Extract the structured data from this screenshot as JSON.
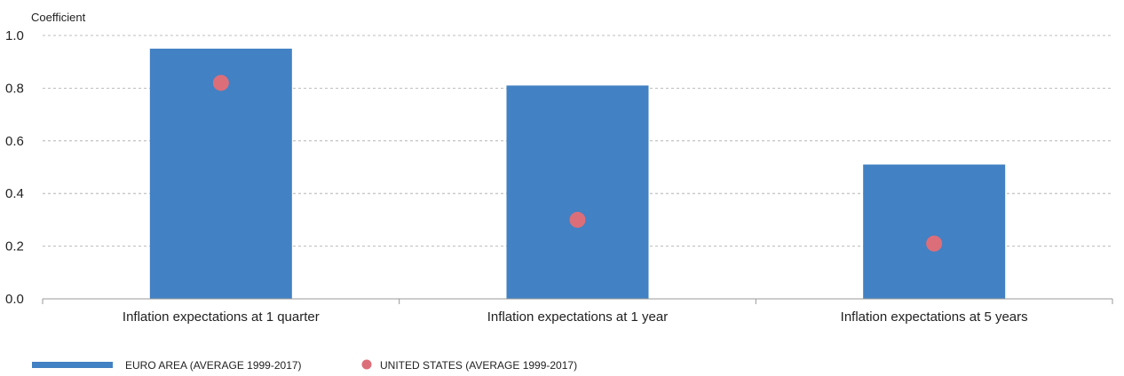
{
  "chart_data": {
    "type": "bar",
    "ylabel": "Coefficient",
    "ylim": [
      0,
      1.0
    ],
    "yticks": [
      "0.0",
      "0.2",
      "0.4",
      "0.6",
      "0.8",
      "1.0"
    ],
    "grid": true,
    "categories": [
      "Inflation expectations at 1 quarter",
      "Inflation expectations at 1 year",
      "Inflation expectations at 5 years"
    ],
    "series": [
      {
        "name": "EURO AREA (AVERAGE 1999-2017)",
        "kind": "bar",
        "color": "#4281c3",
        "values": [
          0.95,
          0.81,
          0.51
        ]
      },
      {
        "name": "UNITED STATES (AVERAGE 1999-2017)",
        "kind": "point",
        "color": "#dc6e7a",
        "values": [
          0.82,
          0.3,
          0.21
        ]
      }
    ],
    "legend_position": "bottom-left"
  }
}
